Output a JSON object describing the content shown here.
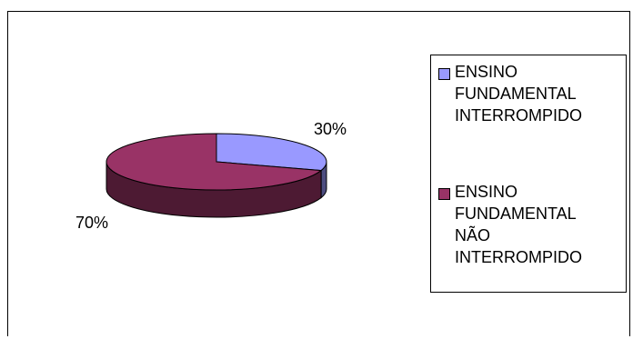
{
  "chart_data": {
    "type": "pie",
    "title": "",
    "categories": [
      "ENSINO FUNDAMENTAL INTERROMPIDO",
      "ENSINO FUNDAMENTAL NÃO INTERROMPIDO"
    ],
    "values": [
      30,
      70
    ],
    "data_labels": [
      "30%",
      "70%"
    ],
    "colors": [
      "#9999ff",
      "#993366"
    ],
    "side_colors": [
      "#4d4d80",
      "#4d1a33"
    ],
    "legend_placement": "right",
    "three_d": true
  },
  "legend": {
    "items": [
      {
        "label": "ENSINO\nFUNDAMENTAL\nINTERROMPIDO",
        "color": "#9999ff"
      },
      {
        "label": "ENSINO\nFUNDAMENTAL\nNÃO\nINTERROMPIDO",
        "color": "#993366"
      }
    ]
  }
}
